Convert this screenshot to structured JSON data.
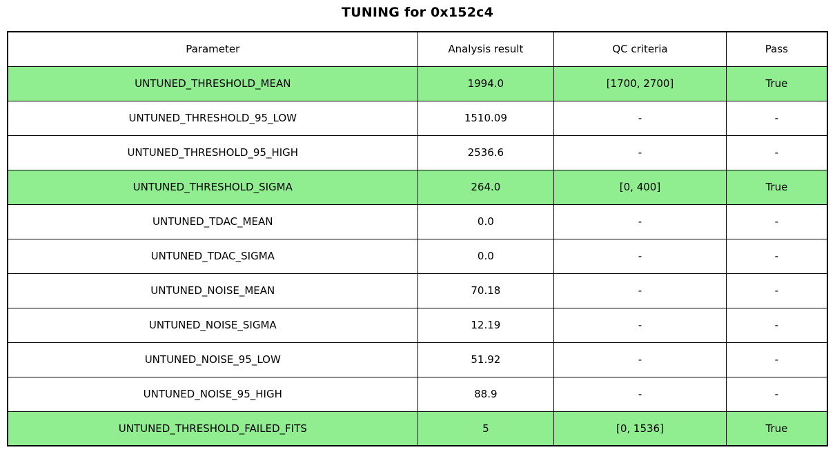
{
  "colors": {
    "highlight_green": "#90EE90",
    "border": "#000000",
    "background": "#FFFFFF",
    "text": "#000000"
  },
  "chart_data": {
    "type": "table",
    "title": "TUNING for 0x152c4",
    "columns": [
      "Parameter",
      "Analysis result",
      "QC criteria",
      "Pass"
    ],
    "rows": [
      {
        "parameter": "UNTUNED_THRESHOLD_MEAN",
        "analysis_result": "1994.0",
        "qc_criteria": "[1700, 2700]",
        "pass": "True",
        "highlighted": true
      },
      {
        "parameter": "UNTUNED_THRESHOLD_95_LOW",
        "analysis_result": "1510.09",
        "qc_criteria": "-",
        "pass": "-",
        "highlighted": false
      },
      {
        "parameter": "UNTUNED_THRESHOLD_95_HIGH",
        "analysis_result": "2536.6",
        "qc_criteria": "-",
        "pass": "-",
        "highlighted": false
      },
      {
        "parameter": "UNTUNED_THRESHOLD_SIGMA",
        "analysis_result": "264.0",
        "qc_criteria": "[0, 400]",
        "pass": "True",
        "highlighted": true
      },
      {
        "parameter": "UNTUNED_TDAC_MEAN",
        "analysis_result": "0.0",
        "qc_criteria": "-",
        "pass": "-",
        "highlighted": false
      },
      {
        "parameter": "UNTUNED_TDAC_SIGMA",
        "analysis_result": "0.0",
        "qc_criteria": "-",
        "pass": "-",
        "highlighted": false
      },
      {
        "parameter": "UNTUNED_NOISE_MEAN",
        "analysis_result": "70.18",
        "qc_criteria": "-",
        "pass": "-",
        "highlighted": false
      },
      {
        "parameter": "UNTUNED_NOISE_SIGMA",
        "analysis_result": "12.19",
        "qc_criteria": "-",
        "pass": "-",
        "highlighted": false
      },
      {
        "parameter": "UNTUNED_NOISE_95_LOW",
        "analysis_result": "51.92",
        "qc_criteria": "-",
        "pass": "-",
        "highlighted": false
      },
      {
        "parameter": "UNTUNED_NOISE_95_HIGH",
        "analysis_result": "88.9",
        "qc_criteria": "-",
        "pass": "-",
        "highlighted": false
      },
      {
        "parameter": "UNTUNED_THRESHOLD_FAILED_FITS",
        "analysis_result": "5",
        "qc_criteria": "[0, 1536]",
        "pass": "True",
        "highlighted": true
      }
    ],
    "layout": {
      "col_widths_pct": [
        50.0,
        16.64,
        21.01,
        12.35
      ],
      "grid": true,
      "legend": "none"
    }
  }
}
